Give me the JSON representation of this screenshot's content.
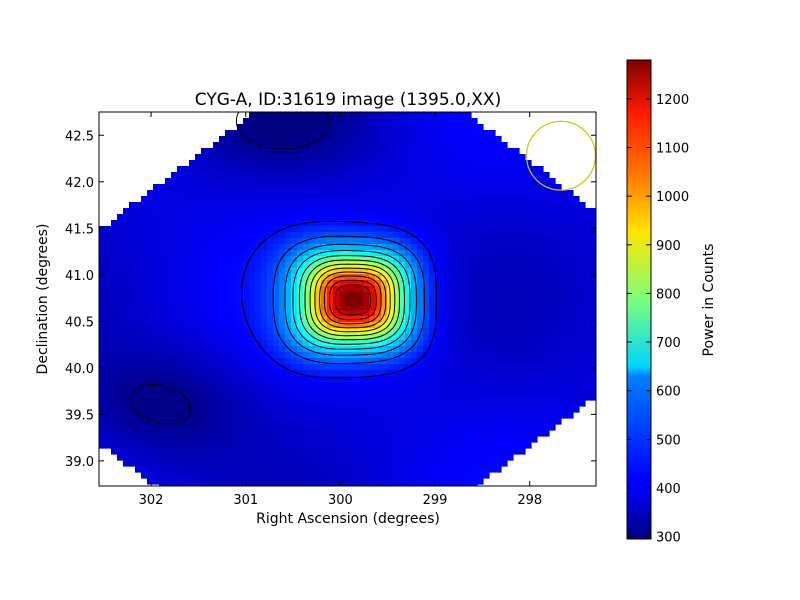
{
  "chart_data": {
    "type": "heatmap",
    "title": "CYG-A, ID:31619 image (1395.0,XX)",
    "xlabel": "Right Ascension (degrees)",
    "ylabel": "Declination (degrees)",
    "xlim": [
      302.55,
      297.3
    ],
    "ylim": [
      38.73,
      42.75
    ],
    "x_ticks": [
      302,
      301,
      300,
      299,
      298
    ],
    "x_tick_labels": [
      "302",
      "301",
      "300",
      "299",
      "298"
    ],
    "y_ticks": [
      39.0,
      39.5,
      40.0,
      40.5,
      41.0,
      41.5,
      42.0,
      42.5
    ],
    "y_tick_labels": [
      "39.0",
      "39.5",
      "40.0",
      "40.5",
      "41.0",
      "41.5",
      "42.0",
      "42.5"
    ],
    "colormap": "jet",
    "peak": {
      "ra": 299.86,
      "dec": 40.73,
      "value": 1280
    },
    "background_level": 390,
    "colorbar": {
      "label": "Power in Counts",
      "range": [
        295,
        1280
      ],
      "ticks": [
        300,
        400,
        500,
        600,
        700,
        800,
        900,
        1000,
        1100,
        1200
      ],
      "tick_labels": [
        "300",
        "400",
        "500",
        "600",
        "700",
        "800",
        "900",
        "1000",
        "1100",
        "1200"
      ]
    },
    "contour_levels": [
      310,
      430,
      500,
      570,
      640,
      710,
      780,
      850,
      920,
      990,
      1060,
      1130,
      1200
    ],
    "circle_marker": {
      "ra": 297.67,
      "dec": 42.28,
      "radius_deg": 0.37,
      "color": "#c8c800"
    }
  }
}
